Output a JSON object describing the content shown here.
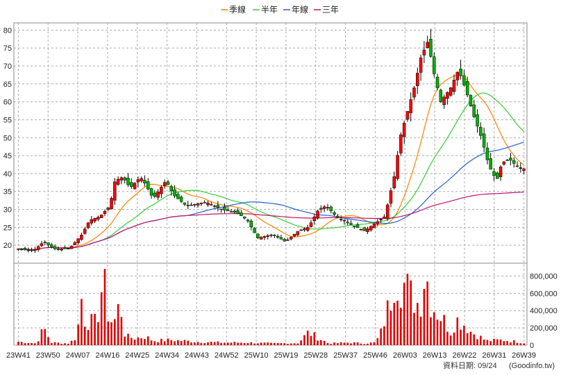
{
  "chart_data": {
    "type": "candlestick_with_volume",
    "legend": [
      {
        "name": "季線",
        "color": "#ff8000"
      },
      {
        "name": "半年",
        "color": "#33cc33"
      },
      {
        "name": "年線",
        "color": "#1f5fd6"
      },
      {
        "name": "三年",
        "color": "#c0106b"
      }
    ],
    "price_axis": {
      "ylim": [
        15,
        82
      ],
      "ticks": [
        20,
        25,
        30,
        35,
        40,
        45,
        50,
        55,
        60,
        65,
        70,
        75,
        80
      ]
    },
    "volume_axis": {
      "ylim": [
        0,
        900000
      ],
      "ticks": [
        0,
        200000,
        400000,
        600000,
        800000
      ],
      "tick_labels": [
        "0",
        "200,000",
        "400,000",
        "600,000",
        "800,000"
      ]
    },
    "x_labels": [
      "23W41",
      "23W50",
      "24W07",
      "24W16",
      "24W25",
      "24W34",
      "24W43",
      "24W52",
      "25W10",
      "25W19",
      "25W28",
      "25W37",
      "25W46",
      "26W03",
      "26W13",
      "26W22",
      "26W31",
      "26W39"
    ],
    "weeks_total": 153,
    "colors": {
      "up": "#ff0000",
      "down": "#00b000",
      "wick": "#000000",
      "volume": "#dd0000",
      "grid": "#aaaaaa"
    },
    "price_keypoints": [
      [
        0,
        19
      ],
      [
        6,
        18.5
      ],
      [
        10,
        21
      ],
      [
        14,
        19
      ],
      [
        20,
        19
      ],
      [
        25,
        23
      ],
      [
        28,
        27
      ],
      [
        32,
        28
      ],
      [
        36,
        31
      ],
      [
        38,
        38
      ],
      [
        41,
        39
      ],
      [
        44,
        36
      ],
      [
        48,
        39
      ],
      [
        50,
        37
      ],
      [
        53,
        33
      ],
      [
        58,
        38
      ],
      [
        61,
        34
      ],
      [
        66,
        31
      ],
      [
        74,
        32
      ],
      [
        80,
        30
      ],
      [
        86,
        29
      ],
      [
        90,
        27
      ],
      [
        94,
        22
      ],
      [
        100,
        23
      ],
      [
        105,
        21
      ],
      [
        110,
        24
      ],
      [
        114,
        25
      ],
      [
        118,
        30
      ],
      [
        121,
        31
      ],
      [
        125,
        28
      ],
      [
        130,
        26
      ],
      [
        136,
        24
      ],
      [
        140,
        26
      ],
      [
        144,
        28
      ],
      [
        148,
        40
      ],
      [
        150,
        50
      ],
      [
        152,
        55
      ],
      [
        156,
        65
      ],
      [
        158,
        72
      ],
      [
        161,
        77
      ],
      [
        163,
        69
      ],
      [
        166,
        60
      ],
      [
        170,
        64
      ],
      [
        173,
        69
      ],
      [
        176,
        63
      ],
      [
        179,
        56
      ],
      [
        182,
        50
      ],
      [
        185,
        42
      ],
      [
        188,
        38
      ],
      [
        190,
        43
      ],
      [
        193,
        44
      ],
      [
        196,
        42
      ],
      [
        200,
        41
      ]
    ],
    "price_index_scale": 0.765,
    "volume_keypoints": [
      [
        0,
        40000
      ],
      [
        4,
        30000
      ],
      [
        7,
        20000
      ],
      [
        9,
        130000
      ],
      [
        10,
        200000
      ],
      [
        13,
        30000
      ],
      [
        20,
        20000
      ],
      [
        23,
        100000
      ],
      [
        25,
        580000
      ],
      [
        26,
        290000
      ],
      [
        28,
        270000
      ],
      [
        30,
        260000
      ],
      [
        31,
        310000
      ],
      [
        34,
        900000
      ],
      [
        35,
        400000
      ],
      [
        36,
        280000
      ],
      [
        38,
        290000
      ],
      [
        40,
        500000
      ],
      [
        42,
        100000
      ],
      [
        46,
        80000
      ],
      [
        50,
        100000
      ],
      [
        53,
        50000
      ],
      [
        60,
        60000
      ],
      [
        70,
        40000
      ],
      [
        80,
        30000
      ],
      [
        90,
        30000
      ],
      [
        100,
        20000
      ],
      [
        110,
        25000
      ],
      [
        114,
        150000
      ],
      [
        118,
        80000
      ],
      [
        122,
        20000
      ],
      [
        130,
        30000
      ],
      [
        136,
        20000
      ],
      [
        140,
        30000
      ],
      [
        142,
        100000
      ],
      [
        144,
        300000
      ],
      [
        147,
        600000
      ],
      [
        148,
        850000
      ],
      [
        150,
        700000
      ],
      [
        152,
        700000
      ],
      [
        154,
        600000
      ],
      [
        156,
        500000
      ],
      [
        158,
        480000
      ],
      [
        160,
        900000
      ],
      [
        162,
        500000
      ],
      [
        164,
        400000
      ],
      [
        167,
        300000
      ],
      [
        170,
        150000
      ],
      [
        172,
        300000
      ],
      [
        175,
        250000
      ],
      [
        178,
        150000
      ],
      [
        180,
        120000
      ],
      [
        184,
        50000
      ],
      [
        190,
        60000
      ],
      [
        196,
        40000
      ],
      [
        200,
        20000
      ]
    ]
  },
  "footer": {
    "date_label": "資料日期: 09/24",
    "source": "(Goodinfo.tw)"
  }
}
